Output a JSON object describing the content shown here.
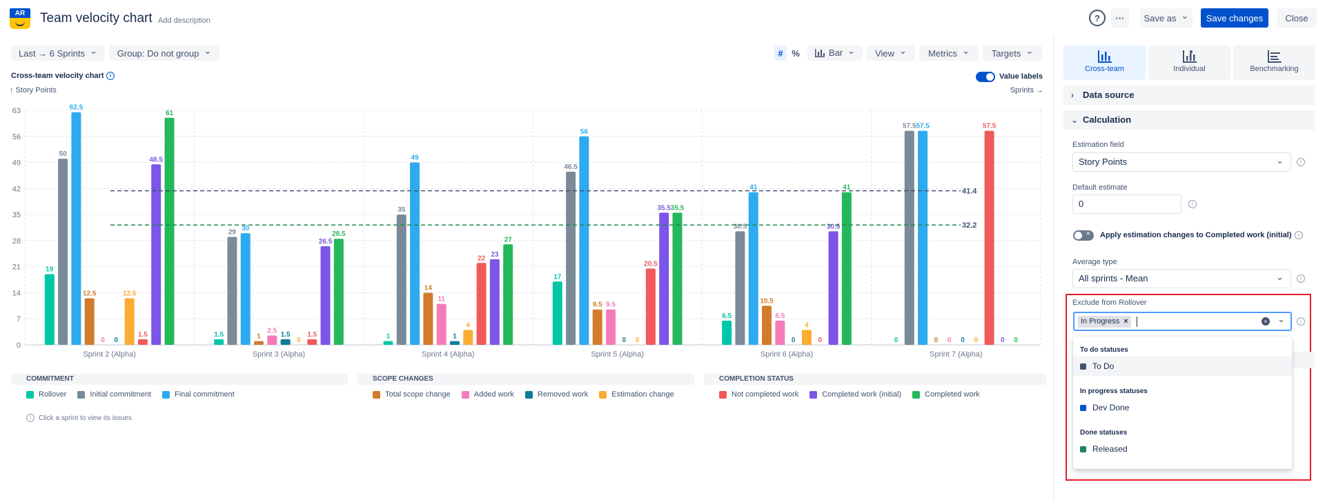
{
  "header": {
    "logo_text": "AR",
    "title": "Team velocity chart",
    "add_description": "Add description",
    "help": "?",
    "more": "···",
    "save_as": "Save as",
    "save_changes": "Save changes",
    "close": "Close"
  },
  "toolbar": {
    "range": "Last → 6 Sprints",
    "group": "Group: Do not group",
    "hash": "#",
    "percent": "%",
    "bar": "Bar",
    "view": "View",
    "metrics": "Metrics",
    "targets": "Targets"
  },
  "chart_header": {
    "title": "Cross-team velocity chart",
    "y_unit": "↑ Story Points",
    "x_unit": "Sprints →",
    "value_labels": "Value labels"
  },
  "chart_data": {
    "type": "bar",
    "categories": [
      "Sprint 2 (Alpha)",
      "Sprint 3 (Alpha)",
      "Sprint 4 (Alpha)",
      "Sprint 5 (Alpha)",
      "Sprint 6 (Alpha)",
      "Sprint 7 (Alpha)"
    ],
    "ylim": [
      0,
      63
    ],
    "yticks": [
      0,
      7,
      14,
      21,
      28,
      35,
      42,
      49,
      56,
      63
    ],
    "ylabel": "Story Points",
    "xlabel": "Sprints",
    "grid": true,
    "series": [
      {
        "name": "Rollover",
        "color": "#00c7a8",
        "values": [
          19,
          1.5,
          1,
          17,
          6.5,
          0
        ]
      },
      {
        "name": "Initial commitment",
        "color": "#7a8a98",
        "values": [
          50,
          29,
          35,
          46.5,
          30.5,
          57.5
        ]
      },
      {
        "name": "Final commitment",
        "color": "#2eaaf0",
        "values": [
          62.5,
          30,
          49,
          56,
          41,
          57.5
        ]
      },
      {
        "name": "Total scope change",
        "color": "#d27b2c",
        "values": [
          12.5,
          1,
          14,
          9.5,
          10.5,
          0
        ]
      },
      {
        "name": "Added work",
        "color": "#f37cb8",
        "values": [
          0,
          2.5,
          11,
          9.5,
          6.5,
          0
        ]
      },
      {
        "name": "Removed work",
        "color": "#0e7c98",
        "values": [
          0,
          1.5,
          1,
          0,
          0,
          0
        ]
      },
      {
        "name": "Estimation change",
        "color": "#fbac33",
        "values": [
          12.5,
          0,
          4,
          0,
          4,
          0
        ]
      },
      {
        "name": "Not completed work",
        "color": "#f25a5a",
        "values": [
          1.5,
          1.5,
          22,
          20.5,
          0,
          57.5
        ]
      },
      {
        "name": "Completed work (initial)",
        "color": "#7b56e8",
        "values": [
          48.5,
          26.5,
          23,
          35.5,
          30.5,
          0
        ]
      },
      {
        "name": "Completed work",
        "color": "#23b85a",
        "values": [
          61,
          28.5,
          27,
          35.5,
          41,
          0
        ]
      }
    ],
    "targets": [
      {
        "value": 41.4,
        "label": "41.4",
        "color": "#42526e"
      },
      {
        "value": 32.2,
        "label": "32.2",
        "color": "#1f8a4c"
      }
    ]
  },
  "legend": {
    "groups": [
      {
        "title": "COMMITMENT",
        "items": [
          {
            "label": "Rollover",
            "color": "#00c7a8"
          },
          {
            "label": "Initial commitment",
            "color": "#7a8a98"
          },
          {
            "label": "Final commitment",
            "color": "#2eaaf0"
          }
        ]
      },
      {
        "title": "SCOPE CHANGES",
        "items": [
          {
            "label": "Total scope change",
            "color": "#d27b2c"
          },
          {
            "label": "Added work",
            "color": "#f37cb8"
          },
          {
            "label": "Removed work",
            "color": "#0e7c98"
          },
          {
            "label": "Estimation change",
            "color": "#fbac33"
          }
        ]
      },
      {
        "title": "COMPLETION STATUS",
        "items": [
          {
            "label": "Not completed work",
            "color": "#f25a5a"
          },
          {
            "label": "Completed work (initial)",
            "color": "#7b56e8"
          },
          {
            "label": "Completed work",
            "color": "#23b85a"
          }
        ]
      }
    ],
    "hint": "Click a sprint to view its issues"
  },
  "panel": {
    "tabs": [
      {
        "label": "Cross-team",
        "icon": "bar-chart-icon",
        "active": true
      },
      {
        "label": "Individual",
        "icon": "person-chart-icon",
        "active": false
      },
      {
        "label": "Benchmarking",
        "icon": "benchmark-icon",
        "active": false
      }
    ],
    "data_source": "Data source",
    "calculation": "Calculation",
    "estimation_field_label": "Estimation field",
    "estimation_field_value": "Story Points",
    "default_estimate_label": "Default estimate",
    "default_estimate_value": "0",
    "apply_estimation_label": "Apply estimation changes to Completed work (initial)",
    "average_type_label": "Average type",
    "average_type_value": "All sprints - Mean",
    "exclude_label": "Exclude from Rollover",
    "exclude_chip": "In Progress",
    "dropdown": {
      "todo_head": "To do statuses",
      "todo_opt": "To Do",
      "todo_color": "#42526e",
      "inprogress_head": "In progress statuses",
      "inprogress_opt": "Dev Done",
      "inprogress_color": "#0052cc",
      "done_head": "Done statuses",
      "done_opt": "Released",
      "done_color": "#1f845a"
    }
  }
}
